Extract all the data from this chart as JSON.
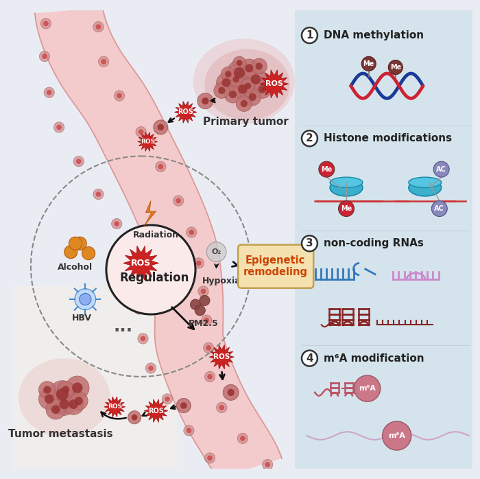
{
  "bg_left_color": "#eaecf4",
  "bg_right_color": "#d8e5ed",
  "ros_color": "#cc2222",
  "ros_text_color": "#ffffff",
  "dna_red": "#cc2233",
  "dna_blue": "#1a3a99",
  "histone_teal": "#3aadcc",
  "histone_me_color": "#cc2233",
  "histone_ac_color": "#8888bb",
  "rna_blue": "#3377bb",
  "rna_pink": "#cc88cc",
  "rna_dark": "#882222",
  "m6a_color": "#bb5566",
  "m6a_circle_color": "#cc7788",
  "orange_color": "#dd8822",
  "radiation_color": "#e07820",
  "vessel_fill": "#f5c8c8",
  "vessel_border": "#e09090",
  "cell_fill": "#cc8888",
  "cell_inner": "#cc4444",
  "tumor_fill": "#c07070",
  "tumor_inner": "#993333",
  "epigenetic_box": "#f5e0b0",
  "epigenetic_text": "#cc4400",
  "title1": "DNA methylation",
  "title2": "Histone modifications",
  "title3": "non-coding RNAs",
  "title4": "m⁶A modification",
  "label_primary": "Primary tumor",
  "label_metastasis": "Tumor metastasis",
  "label_regulation": "Regulation",
  "label_radiation": "Radiation",
  "label_alcohol": "Alcohol",
  "label_hypoxia": "Hypoxia",
  "label_hbv": "HBV",
  "label_pm25": "PM2.5",
  "label_epigenetic": "Epigenetic\nremodeling",
  "hbv_color": "#99ccff",
  "hbv_border": "#4488cc"
}
